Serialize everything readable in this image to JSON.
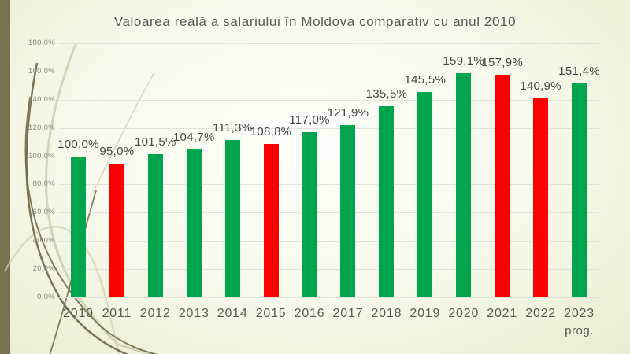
{
  "chart_data": {
    "type": "bar",
    "title": "Valoarea reală a salariului în Moldova comparativ cu anul 2010",
    "xlabel": "",
    "ylabel": "",
    "categories": [
      "2010",
      "2011",
      "2012",
      "2013",
      "2014",
      "2015",
      "2016",
      "2017",
      "2018",
      "2019",
      "2020",
      "2021",
      "2022",
      "2023"
    ],
    "category_sublabels": [
      "",
      "",
      "",
      "",
      "",
      "",
      "",
      "",
      "",
      "",
      "",
      "",
      "",
      "prog."
    ],
    "values": [
      100.0,
      95.0,
      101.5,
      104.7,
      111.3,
      108.8,
      117.0,
      121.9,
      135.5,
      145.5,
      159.1,
      157.9,
      140.9,
      151.4
    ],
    "value_labels": [
      "100,0%",
      "95,0%",
      "101,5%",
      "104,7%",
      "111,3%",
      "108,8%",
      "117,0%",
      "121,9%",
      "135,5%",
      "145,5%",
      "159,1%",
      "157,9%",
      "140,9%",
      "151,4%"
    ],
    "bar_colors": [
      "green",
      "red",
      "green",
      "green",
      "green",
      "red",
      "green",
      "green",
      "green",
      "green",
      "green",
      "red",
      "red",
      "green"
    ],
    "colors": {
      "green": "#00a54d",
      "red": "#fa0000"
    },
    "ylim": [
      0,
      180
    ],
    "ytick_step": 20,
    "ytick_labels": [
      "180,0%",
      "160,0%",
      "140,0%",
      "120,0%",
      "100,0%",
      "80,0%",
      "60,0%",
      "40,0%",
      "20,0%",
      "0,0%"
    ],
    "grid": true,
    "legend": "none"
  },
  "theme": {
    "title_color": "#595959",
    "accent_bar_color": "#77714f",
    "swoosh_dark": "#6f6749",
    "swoosh_light": "#c6caa7"
  }
}
